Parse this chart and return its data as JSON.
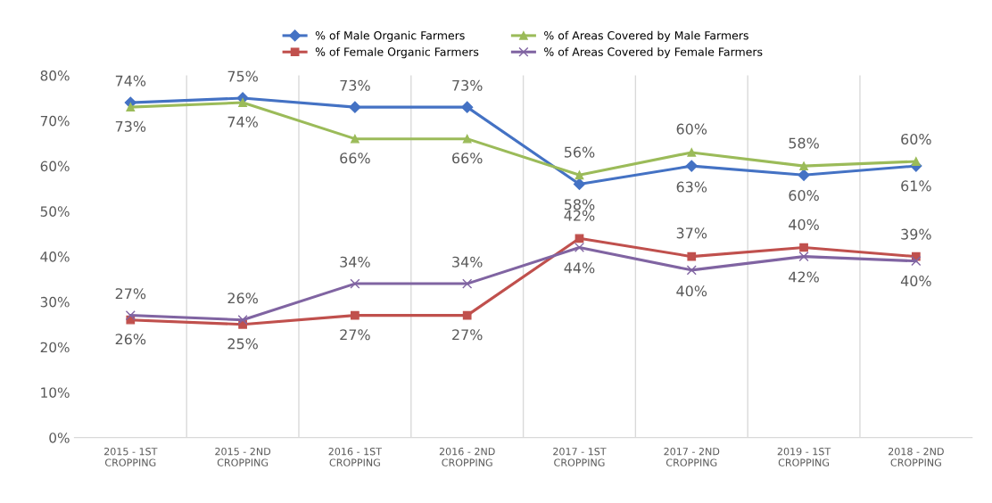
{
  "chart_data": {
    "type": "line",
    "categories": [
      "2015 - 1ST\nCROPPING",
      "2015 - 2ND\nCROPPING",
      "2016 - 1ST\nCROPPING",
      "2016 - 2ND\nCROPPING",
      "2017 - 1ST\nCROPPING",
      "2017 - 2ND\nCROPPING",
      "2019 - 1ST\nCROPPING",
      "2018 - 2ND\nCROPPING"
    ],
    "series": [
      {
        "name": "% of Male Organic Farmers",
        "color": "#4472c4",
        "marker": "diamond",
        "values": [
          74,
          75,
          73,
          73,
          56,
          60,
          58,
          60
        ],
        "value_labels": [
          "74%",
          "75%",
          "73%",
          "73%",
          "56%",
          "60%",
          "58%",
          "60%"
        ]
      },
      {
        "name": "% of Female Organic Farmers",
        "color": "#c0504d",
        "marker": "square",
        "values": [
          26,
          25,
          27,
          27,
          44,
          40,
          42,
          40
        ],
        "value_labels": [
          "26%",
          "25%",
          "27%",
          "27%",
          "44%",
          "40%",
          "42%",
          "40%"
        ]
      },
      {
        "name": "% of Areas Covered by Male Farmers",
        "color": "#9bbb59",
        "marker": "triangle",
        "values": [
          73,
          74,
          66,
          66,
          58,
          63,
          60,
          61
        ],
        "value_labels": [
          "73%",
          "74%",
          "66%",
          "66%",
          "58%",
          "63%",
          "60%",
          "61%"
        ]
      },
      {
        "name": "% of Areas Covered by Female Farmers",
        "color": "#8064a2",
        "marker": "cross",
        "values": [
          27,
          26,
          34,
          34,
          42,
          37,
          40,
          39
        ],
        "value_labels": [
          "27%",
          "26%",
          "34%",
          "34%",
          "42%",
          "37%",
          "40%",
          "39%"
        ]
      }
    ],
    "ylim": [
      0,
      80
    ],
    "yticks": [
      {
        "value": 0,
        "label": "0%"
      },
      {
        "value": 10,
        "label": "10%"
      },
      {
        "value": 20,
        "label": "20%"
      },
      {
        "value": 30,
        "label": "30%"
      },
      {
        "value": 40,
        "label": "40%"
      },
      {
        "value": 50,
        "label": "50%"
      },
      {
        "value": 60,
        "label": "60%"
      },
      {
        "value": 70,
        "label": "70%"
      },
      {
        "value": 80,
        "label": "80%"
      }
    ],
    "grid": "x",
    "legend": "top",
    "line_style": "solid"
  }
}
